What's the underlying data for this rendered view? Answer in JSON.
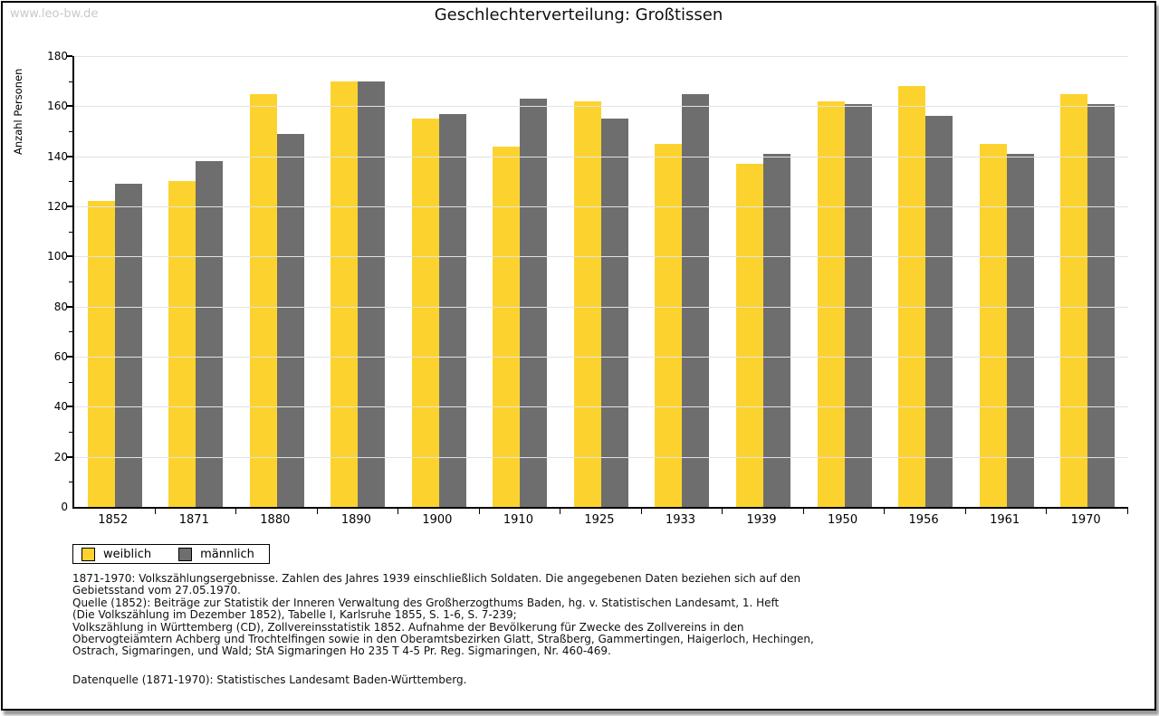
{
  "watermark": "www.leo-bw.de",
  "chart_data": {
    "type": "bar",
    "title": "Geschlechterverteilung: Großtissen",
    "ylabel": "Anzahl Personen",
    "xlabel": "",
    "ylim": [
      0,
      180
    ],
    "yticks": [
      0,
      20,
      40,
      60,
      80,
      100,
      120,
      140,
      160,
      180
    ],
    "minor_tick_step": 10,
    "grid": true,
    "legend_position": "bottom-left",
    "categories": [
      "1852",
      "1871",
      "1880",
      "1890",
      "1900",
      "1910",
      "1925",
      "1933",
      "1939",
      "1950",
      "1956",
      "1961",
      "1970"
    ],
    "series": [
      {
        "name": "weiblich",
        "color": "#FCD32E",
        "values": [
          122,
          130,
          165,
          170,
          155,
          144,
          162,
          145,
          137,
          162,
          168,
          145,
          165
        ]
      },
      {
        "name": "männlich",
        "color": "#6E6E6E",
        "values": [
          129,
          138,
          149,
          170,
          157,
          163,
          155,
          165,
          141,
          161,
          156,
          141,
          161
        ]
      }
    ]
  },
  "notes": {
    "lines": [
      "1871-1970: Volkszählungsergebnisse. Zahlen des Jahres 1939 einschließlich Soldaten. Die angegebenen Daten beziehen sich auf den",
      "Gebietsstand vom 27.05.1970.",
      "Quelle (1852): Beiträge zur Statistik der Inneren Verwaltung des Großherzogthums Baden, hg. v. Statistischen Landesamt, 1. Heft",
      "(Die Volkszählung im Dezember 1852), Tabelle I, Karlsruhe 1855, S. 1-6, S. 7-239;",
      "Volkszählung in Württemberg (CD), Zollvereinsstatistik 1852. Aufnahme der Bevölkerung für Zwecke des Zollvereins in den",
      "Obervogteiämtern Achberg und Trochtelfingen sowie in den Oberamtsbezirken Glatt, Straßberg, Gammertingen, Haigerloch, Hechingen,",
      "Ostrach, Sigmaringen, und Wald; StA Sigmaringen Ho 235 T 4-5 Pr. Reg. Sigmaringen, Nr. 460-469."
    ],
    "source": "Datenquelle (1871-1970): Statistisches Landesamt Baden-Württemberg."
  }
}
